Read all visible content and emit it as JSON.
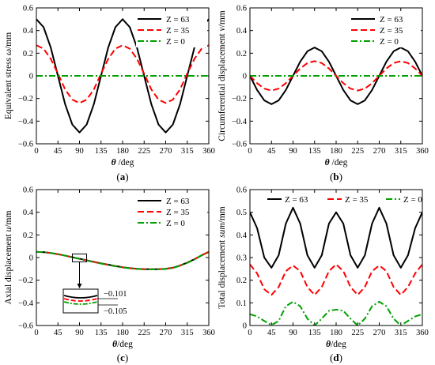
{
  "chart_data": [
    {
      "id": "a",
      "type": "line",
      "panel_label": "(a)",
      "xlabel_sym": "θ",
      "xlabel_unit": " /deg",
      "ylabel_text": "Equivalent stress ",
      "ylabel_sym": "ω",
      "ylabel_unit": "/mm",
      "xlim": [
        0,
        360
      ],
      "ylim": [
        -0.6,
        0.6
      ],
      "xticks": [
        0,
        45,
        90,
        135,
        180,
        225,
        270,
        315,
        360
      ],
      "yticks": [
        -0.6,
        -0.4,
        -0.2,
        0,
        0.2,
        0.4,
        0.6
      ],
      "ytick_labels": [
        "−0.6",
        "−0.4",
        "−0.2",
        "0",
        "0.2",
        "0.4",
        "0.6"
      ],
      "legend_position": "top-right",
      "series": [
        {
          "name": "Z = 63",
          "color": "#000000",
          "dash": "solid",
          "x": [
            0,
            15,
            30,
            45,
            60,
            75,
            90,
            105,
            120,
            135,
            150,
            165,
            180,
            195,
            210,
            225,
            240,
            255,
            270,
            285,
            300,
            315,
            330,
            345,
            360
          ],
          "y": [
            0.5,
            0.43,
            0.25,
            0,
            -0.25,
            -0.43,
            -0.5,
            -0.43,
            -0.25,
            0,
            0.25,
            0.43,
            0.5,
            0.43,
            0.25,
            0,
            -0.25,
            -0.43,
            -0.5,
            -0.43,
            -0.25,
            0,
            0.25,
            0.43,
            0.5
          ]
        },
        {
          "name": "Z = 35",
          "color": "#ff0000",
          "dash": "dash",
          "x": [
            0,
            15,
            30,
            45,
            60,
            75,
            90,
            105,
            120,
            135,
            150,
            165,
            180,
            195,
            210,
            225,
            240,
            255,
            270,
            285,
            300,
            315,
            330,
            345,
            360
          ],
          "y": [
            0.27,
            0.24,
            0.15,
            0.02,
            -0.12,
            -0.21,
            -0.24,
            -0.21,
            -0.12,
            0.02,
            0.15,
            0.24,
            0.27,
            0.24,
            0.15,
            0.02,
            -0.12,
            -0.21,
            -0.24,
            -0.21,
            -0.12,
            0.02,
            0.15,
            0.24,
            0.27
          ]
        },
        {
          "name": "Z = 0",
          "color": "#00a000",
          "dash": "dashdot",
          "x": [
            0,
            360
          ],
          "y": [
            0,
            0
          ]
        }
      ]
    },
    {
      "id": "b",
      "type": "line",
      "panel_label": "(b)",
      "xlabel_sym": "θ",
      "xlabel_unit": " /deg",
      "ylabel_text": "Circumferential displacement ",
      "ylabel_sym": "v",
      "ylabel_unit": "/mm",
      "xlim": [
        0,
        360
      ],
      "ylim": [
        -0.6,
        0.6
      ],
      "xticks": [
        0,
        45,
        90,
        135,
        180,
        225,
        270,
        315,
        360
      ],
      "yticks": [
        -0.6,
        -0.4,
        -0.2,
        0,
        0.2,
        0.4,
        0.6
      ],
      "ytick_labels": [
        "−0.6",
        "−0.4",
        "−0.2",
        "0",
        "0.2",
        "0.4",
        "0.6"
      ],
      "legend_position": "top-right",
      "series": [
        {
          "name": "Z = 63",
          "color": "#000000",
          "dash": "solid",
          "x": [
            0,
            15,
            30,
            45,
            60,
            75,
            90,
            105,
            120,
            135,
            150,
            165,
            180,
            195,
            210,
            225,
            240,
            255,
            270,
            285,
            300,
            315,
            330,
            345,
            360
          ],
          "y": [
            0,
            -0.125,
            -0.217,
            -0.25,
            -0.217,
            -0.125,
            0,
            0.125,
            0.217,
            0.25,
            0.217,
            0.125,
            0,
            -0.125,
            -0.217,
            -0.25,
            -0.217,
            -0.125,
            0,
            0.125,
            0.217,
            0.25,
            0.217,
            0.125,
            0
          ]
        },
        {
          "name": "Z = 35",
          "color": "#ff0000",
          "dash": "dash",
          "x": [
            0,
            15,
            30,
            45,
            60,
            75,
            90,
            105,
            120,
            135,
            150,
            165,
            180,
            195,
            210,
            225,
            240,
            255,
            270,
            285,
            300,
            315,
            330,
            345,
            360
          ],
          "y": [
            0,
            -0.065,
            -0.113,
            -0.13,
            -0.113,
            -0.065,
            0,
            0.065,
            0.113,
            0.13,
            0.113,
            0.065,
            0,
            -0.065,
            -0.113,
            -0.13,
            -0.113,
            -0.065,
            0,
            0.065,
            0.113,
            0.13,
            0.113,
            0.065,
            0
          ]
        },
        {
          "name": "Z = 0",
          "color": "#00a000",
          "dash": "dashdot",
          "x": [
            0,
            360
          ],
          "y": [
            0,
            0
          ]
        }
      ]
    },
    {
      "id": "c",
      "type": "line",
      "panel_label": "(c)",
      "xlabel_sym": "θ",
      "xlabel_unit": "/deg",
      "ylabel_text": "Axial displacement ",
      "ylabel_sym": "u",
      "ylabel_unit": "/mm",
      "xlim": [
        0,
        360
      ],
      "ylim": [
        -0.6,
        0.6
      ],
      "xticks": [
        0,
        45,
        90,
        135,
        180,
        225,
        270,
        315,
        360
      ],
      "yticks": [
        -0.6,
        -0.4,
        -0.2,
        0,
        0.2,
        0.4,
        0.6
      ],
      "ytick_labels": [
        "−0.6",
        "−0.4",
        "−0.2",
        "0",
        "0.2",
        "0.4",
        "0.6"
      ],
      "legend_position": "top-right",
      "inset_labels": [
        "−0.101",
        "−0.105"
      ],
      "series": [
        {
          "name": "Z = 63",
          "color": "#000000",
          "dash": "solid",
          "x": [
            0,
            15,
            30,
            45,
            60,
            75,
            90,
            105,
            120,
            135,
            150,
            165,
            180,
            195,
            210,
            225,
            240,
            255,
            270,
            285,
            300,
            315,
            330,
            345,
            360
          ],
          "y": [
            0.05,
            0.048,
            0.04,
            0.03,
            0.017,
            0.003,
            -0.01,
            -0.024,
            -0.038,
            -0.051,
            -0.063,
            -0.075,
            -0.085,
            -0.093,
            -0.099,
            -0.102,
            -0.103,
            -0.102,
            -0.099,
            -0.09,
            -0.07,
            -0.045,
            -0.015,
            0.02,
            0.05
          ]
        },
        {
          "name": "Z = 35",
          "color": "#ff0000",
          "dash": "dash",
          "x": [
            0,
            15,
            30,
            45,
            60,
            75,
            90,
            105,
            120,
            135,
            150,
            165,
            180,
            195,
            210,
            225,
            240,
            255,
            270,
            285,
            300,
            315,
            330,
            345,
            360
          ],
          "y": [
            0.05,
            0.048,
            0.04,
            0.03,
            0.017,
            0.003,
            -0.011,
            -0.025,
            -0.039,
            -0.052,
            -0.064,
            -0.076,
            -0.086,
            -0.094,
            -0.1,
            -0.103,
            -0.104,
            -0.103,
            -0.1,
            -0.091,
            -0.071,
            -0.046,
            -0.016,
            0.019,
            0.05
          ]
        },
        {
          "name": "Z = 0",
          "color": "#00a000",
          "dash": "dashdot",
          "x": [
            0,
            15,
            30,
            45,
            60,
            75,
            90,
            105,
            120,
            135,
            150,
            165,
            180,
            195,
            210,
            225,
            240,
            255,
            270,
            285,
            300,
            315,
            330,
            345,
            360
          ],
          "y": [
            0.05,
            0.048,
            0.04,
            0.03,
            0.017,
            0.003,
            -0.012,
            -0.026,
            -0.04,
            -0.053,
            -0.065,
            -0.077,
            -0.087,
            -0.095,
            -0.101,
            -0.104,
            -0.105,
            -0.104,
            -0.101,
            -0.092,
            -0.072,
            -0.047,
            -0.017,
            0.018,
            0.05
          ]
        }
      ]
    },
    {
      "id": "d",
      "type": "line",
      "panel_label": "(d)",
      "xlabel_sym": "θ",
      "xlabel_unit": "/deg",
      "ylabel_text": "Total displacement ",
      "ylabel_sym": "sum",
      "ylabel_unit": "/mm",
      "xlim": [
        0,
        360
      ],
      "ylim": [
        0,
        0.6
      ],
      "xticks": [
        0,
        45,
        90,
        135,
        180,
        225,
        270,
        315,
        360
      ],
      "yticks": [
        0,
        0.1,
        0.2,
        0.3,
        0.4,
        0.5,
        0.6
      ],
      "ytick_labels": [
        "0",
        "0.1",
        "0.2",
        "0.3",
        "0.4",
        "0.5",
        "0.6"
      ],
      "legend_position": "top",
      "series": [
        {
          "name": "Z = 63",
          "color": "#000000",
          "dash": "solid",
          "x": [
            0,
            15,
            30,
            45,
            60,
            75,
            90,
            105,
            120,
            135,
            150,
            165,
            180,
            195,
            210,
            225,
            240,
            255,
            270,
            285,
            300,
            315,
            330,
            345,
            360
          ],
          "y": [
            0.5,
            0.43,
            0.3,
            0.255,
            0.31,
            0.45,
            0.52,
            0.45,
            0.31,
            0.255,
            0.31,
            0.45,
            0.5,
            0.45,
            0.31,
            0.255,
            0.31,
            0.45,
            0.52,
            0.45,
            0.31,
            0.255,
            0.31,
            0.43,
            0.5
          ]
        },
        {
          "name": "Z = 35",
          "color": "#ff0000",
          "dash": "dash",
          "x": [
            0,
            15,
            30,
            45,
            60,
            75,
            90,
            105,
            120,
            135,
            150,
            165,
            180,
            195,
            210,
            225,
            240,
            255,
            270,
            285,
            300,
            315,
            330,
            345,
            360
          ],
          "y": [
            0.27,
            0.23,
            0.16,
            0.135,
            0.17,
            0.24,
            0.265,
            0.24,
            0.17,
            0.135,
            0.17,
            0.24,
            0.27,
            0.24,
            0.17,
            0.135,
            0.17,
            0.24,
            0.265,
            0.24,
            0.17,
            0.135,
            0.17,
            0.23,
            0.27
          ]
        },
        {
          "name": "Z = 0",
          "color": "#00a000",
          "dash": "dashdot",
          "x": [
            0,
            15,
            30,
            45,
            60,
            75,
            90,
            105,
            120,
            135,
            150,
            165,
            180,
            195,
            210,
            225,
            240,
            255,
            270,
            285,
            300,
            315,
            330,
            345,
            360
          ],
          "y": [
            0.05,
            0.04,
            0.02,
            0.002,
            0.02,
            0.085,
            0.105,
            0.085,
            0.03,
            0.0,
            0.03,
            0.065,
            0.07,
            0.065,
            0.03,
            0.0,
            0.03,
            0.085,
            0.105,
            0.085,
            0.03,
            0.0,
            0.02,
            0.04,
            0.05
          ]
        }
      ]
    }
  ]
}
